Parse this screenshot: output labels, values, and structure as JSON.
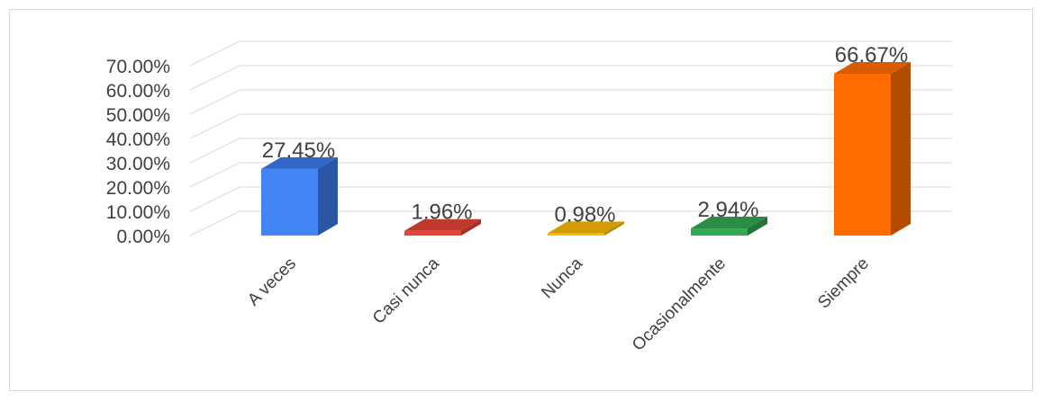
{
  "chart_data": {
    "type": "bar",
    "title": "",
    "xlabel": "",
    "ylabel": "",
    "categories": [
      "A veces",
      "Casi nunca",
      "Nunca",
      "Ocasionalmente",
      "Siempre"
    ],
    "values": [
      27.45,
      1.96,
      0.98,
      2.94,
      66.67
    ],
    "value_labels": [
      "27.45%",
      "1.96%",
      "0.98%",
      "2.94%",
      "66.67%"
    ],
    "ylim": [
      0,
      70
    ],
    "yticks": [
      0,
      10,
      20,
      30,
      40,
      50,
      60,
      70
    ],
    "ytick_labels": [
      "0.00%",
      "10.00%",
      "20.00%",
      "30.00%",
      "40.00%",
      "50.00%",
      "60.00%",
      "70.00%"
    ],
    "grid": true,
    "legend": "none",
    "style": "3d-column",
    "colors": [
      {
        "front": "#4285f4",
        "side": "#2a56a6",
        "top": "#3367c7"
      },
      {
        "front": "#ea4335",
        "side": "#a82e25",
        "top": "#c1392c"
      },
      {
        "front": "#fbbc04",
        "side": "#b08503",
        "top": "#d19d03"
      },
      {
        "front": "#34a853",
        "side": "#22743a",
        "top": "#2a8c45"
      },
      {
        "front": "#ff6d01",
        "side": "#b34c00",
        "top": "#d95c00"
      }
    ],
    "grid_color": "#d9d9d9"
  }
}
